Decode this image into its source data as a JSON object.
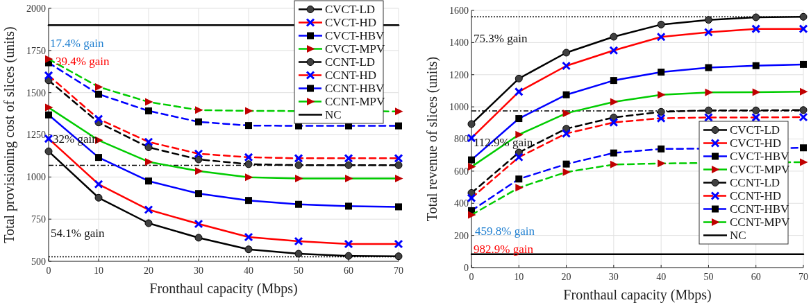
{
  "chart_data": [
    {
      "type": "line",
      "xlabel": "Fronthaul capacity (Mbps)",
      "ylabel": "Total provisioning cost of slices (units)",
      "x": [
        0,
        10,
        20,
        30,
        40,
        50,
        60,
        70
      ],
      "xlim": [
        0,
        70
      ],
      "xticks": [
        0,
        10,
        20,
        30,
        40,
        50,
        60,
        70
      ],
      "ylim": [
        500,
        2000
      ],
      "yticks": [
        500,
        750,
        1000,
        1250,
        1500,
        1750,
        2000
      ],
      "grid": true,
      "legend": "top right",
      "series": [
        {
          "name": "CVCT-LD",
          "color": "#000000",
          "marker": "circle",
          "line_style": "solid",
          "colors": [
            "#404040",
            "#404040",
            "#404040",
            "#404040",
            "#404040",
            "#404040",
            "#404040",
            "#404040"
          ],
          "values": [
            1152,
            877,
            726,
            640,
            571,
            545,
            532,
            530
          ]
        },
        {
          "name": "CVCT-HD",
          "color": "#ff0000",
          "marker": "cross",
          "line_style": "solid",
          "colors": [
            "#0000ff",
            "#0000ff",
            "#0000ff",
            "#0000ff",
            "#0000ff",
            "#0000ff",
            "#0000ff",
            "#0000ff"
          ],
          "values": [
            1227,
            957,
            806,
            722,
            644,
            619,
            603,
            603
          ]
        },
        {
          "name": "CVCT-HBV",
          "color": "#0000ff",
          "marker": "square",
          "line_style": "solid",
          "colors": [
            "#000000",
            "#000000",
            "#000000",
            "#000000",
            "#000000",
            "#000000",
            "#000000",
            "#000000"
          ],
          "values": [
            1368,
            1116,
            976,
            902,
            861,
            838,
            827,
            823
          ]
        },
        {
          "name": "CVCT-MPV",
          "color": "#00cc00",
          "marker": "triangle",
          "line_style": "solid",
          "colors": [
            "#c00000",
            "#c00000",
            "#c00000",
            "#c00000",
            "#c00000",
            "#c00000",
            "#c00000",
            "#c00000"
          ],
          "values": [
            1412,
            1218,
            1090,
            1035,
            998,
            991,
            991,
            991
          ]
        },
        {
          "name": "CCNT-LD",
          "color": "#000000",
          "marker": "circle",
          "line_style": "dashed",
          "colors": [
            "#404040",
            "#404040",
            "#404040",
            "#404040",
            "#404040",
            "#404040",
            "#404040",
            "#404040"
          ],
          "values": [
            1573,
            1323,
            1176,
            1104,
            1076,
            1070,
            1070,
            1070
          ]
        },
        {
          "name": "CCNT-HD",
          "color": "#ff0000",
          "marker": "cross",
          "line_style": "dashed",
          "colors": [
            "#0000ff",
            "#0000ff",
            "#0000ff",
            "#0000ff",
            "#0000ff",
            "#0000ff",
            "#0000ff",
            "#0000ff"
          ],
          "values": [
            1602,
            1344,
            1208,
            1138,
            1117,
            1111,
            1111,
            1111
          ]
        },
        {
          "name": "CCNT-HBV",
          "color": "#0000ff",
          "marker": "square",
          "line_style": "dashed",
          "colors": [
            "#000000",
            "#000000",
            "#000000",
            "#000000",
            "#000000",
            "#000000",
            "#000000",
            "#000000"
          ],
          "values": [
            1677,
            1491,
            1392,
            1327,
            1305,
            1303,
            1303,
            1303
          ]
        },
        {
          "name": "CCNT-MPV",
          "color": "#00cc00",
          "marker": "triangle",
          "line_style": "dashed",
          "colors": [
            "#c00000",
            "#c00000",
            "#c00000",
            "#c00000",
            "#c00000",
            "#c00000",
            "#c00000",
            "#c00000"
          ],
          "values": [
            1699,
            1534,
            1445,
            1397,
            1392,
            null,
            null,
            1389
          ]
        },
        {
          "name": "NC",
          "color": "#000000",
          "marker": "none",
          "line_style": "solid",
          "values": [
            1900,
            1900,
            1900,
            1900,
            1900,
            null,
            null,
            1900
          ]
        }
      ],
      "ref_lines": [
        {
          "axis": "y",
          "value": 1069,
          "line_style": "dashdot",
          "color": "#000000"
        },
        {
          "axis": "y",
          "value": 527,
          "line_style": "dotted",
          "color": "#000000"
        }
      ],
      "annotations": [
        "17.4% gain",
        "39.4% gain",
        "32% gain",
        "54.1% gain"
      ]
    },
    {
      "type": "line",
      "xlabel": "Fronthaul capacity (Mbps)",
      "ylabel": "Total revenue of slices (units)",
      "x": [
        0,
        10,
        20,
        30,
        40,
        50,
        60,
        70
      ],
      "xlim": [
        0,
        70
      ],
      "xticks": [
        0,
        10,
        20,
        30,
        40,
        50,
        60,
        70
      ],
      "ylim": [
        0,
        1600
      ],
      "yticks": [
        0,
        200,
        400,
        600,
        800,
        1000,
        1200,
        1400,
        1600
      ],
      "grid": true,
      "legend": "bottom right",
      "series": [
        {
          "name": "CVCT-LD",
          "color": "#000000",
          "marker": "circle",
          "line_style": "solid",
          "colors": [
            "#404040",
            "#404040",
            "#404040",
            "#404040",
            "#404040",
            "#404040",
            "#404040",
            "#404040"
          ],
          "values": [
            893,
            1176,
            1337,
            1436,
            1512,
            1541,
            1557,
            1560
          ]
        },
        {
          "name": "CVCT-HD",
          "color": "#ff0000",
          "marker": "cross",
          "line_style": "solid",
          "colors": [
            "#0000ff",
            "#0000ff",
            "#0000ff",
            "#0000ff",
            "#0000ff",
            "#0000ff",
            "#0000ff",
            "#0000ff"
          ],
          "values": [
            806,
            1094,
            1255,
            1351,
            1435,
            1464,
            1485,
            1485
          ]
        },
        {
          "name": "CVCT-HBV",
          "color": "#0000ff",
          "marker": "square",
          "line_style": "solid",
          "colors": [
            "#000000",
            "#000000",
            "#000000",
            "#000000",
            "#000000",
            "#000000",
            "#000000",
            "#000000"
          ],
          "values": [
            670,
            927,
            1075,
            1164,
            1216,
            1244,
            1256,
            1264
          ]
        },
        {
          "name": "CVCT-MPV",
          "color": "#00cc00",
          "marker": "triangle",
          "line_style": "solid",
          "colors": [
            "#c00000",
            "#c00000",
            "#c00000",
            "#c00000",
            "#c00000",
            "#c00000",
            "#c00000",
            "#c00000"
          ],
          "values": [
            627,
            827,
            960,
            1031,
            1075,
            1090,
            1091,
            1094
          ]
        },
        {
          "name": "CCNT-LD",
          "color": "#000000",
          "marker": "circle",
          "line_style": "dashed",
          "colors": [
            "#404040",
            "#404040",
            "#404040",
            "#404040",
            "#404040",
            "#404040",
            "#404040",
            "#404040"
          ],
          "values": [
            464,
            716,
            864,
            934,
            969,
            978,
            978,
            980
          ]
        },
        {
          "name": "CCNT-HD",
          "color": "#ff0000",
          "marker": "cross",
          "line_style": "dashed",
          "colors": [
            "#0000ff",
            "#0000ff",
            "#0000ff",
            "#0000ff",
            "#0000ff",
            "#0000ff",
            "#0000ff",
            "#0000ff"
          ],
          "values": [
            433,
            687,
            834,
            903,
            929,
            934,
            934,
            936
          ]
        },
        {
          "name": "CCNT-HBV",
          "color": "#0000ff",
          "marker": "square",
          "line_style": "dashed",
          "colors": [
            "#000000",
            "#000000",
            "#000000",
            "#000000",
            "#000000",
            "#000000",
            "#000000",
            "#000000"
          ],
          "values": [
            354,
            551,
            644,
            713,
            738,
            null,
            null,
            745
          ]
        },
        {
          "name": "CCNT-MPV",
          "color": "#00cc00",
          "marker": "triangle",
          "line_style": "dashed",
          "colors": [
            "#c00000",
            "#c00000",
            "#c00000",
            "#c00000",
            "#c00000",
            "#c00000",
            "#c00000",
            "#c00000"
          ],
          "values": [
            328,
            497,
            594,
            641,
            648,
            null,
            null,
            656
          ]
        },
        {
          "name": "NC",
          "color": "#000000",
          "marker": "none",
          "line_style": "solid",
          "values": [
            83,
            83,
            83,
            83,
            83,
            83,
            83,
            83
          ]
        }
      ],
      "ref_lines": [
        {
          "axis": "y",
          "value": 1560,
          "line_style": "dotted",
          "color": "#000000"
        },
        {
          "axis": "y",
          "value": 975,
          "line_style": "dashdot",
          "color": "#000000"
        }
      ],
      "annotations": [
        "75.3% gain",
        "112.9% gain",
        "459.8% gain",
        "982.9% gain"
      ]
    }
  ]
}
